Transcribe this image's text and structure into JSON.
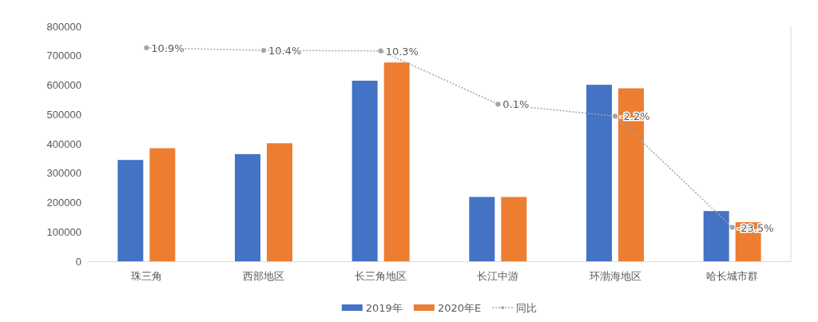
{
  "chart_data": {
    "type": "bar",
    "categories": [
      "珠三角",
      "西部地区",
      "长三角地区",
      "长江中游",
      "环渤海地区",
      "哈长城市群"
    ],
    "ylim": [
      0,
      800000
    ],
    "yticks": [
      0,
      100000,
      200000,
      300000,
      400000,
      500000,
      600000,
      700000,
      800000
    ],
    "y2lim": [
      -30,
      15
    ],
    "legend": "bottom",
    "grid": false,
    "series": [
      {
        "name": "2019年",
        "color": "#4472c4",
        "values": [
          345000,
          365000,
          615000,
          219000,
          601000,
          171000
        ]
      },
      {
        "name": "2020年E",
        "color": "#ed7d31",
        "values": [
          385000,
          402000,
          677000,
          219000,
          589000,
          133000
        ]
      },
      {
        "name": "同比",
        "type": "line",
        "axis": "y2",
        "color": "#a5a5a5",
        "line_style": "dotted",
        "marker": "circle",
        "data_labels": true,
        "value_labels": [
          "10.9%",
          "10.4%",
          "10.3%",
          "0.1%",
          "-2.2%",
          "-23.5%"
        ],
        "values": [
          10.9,
          10.4,
          10.3,
          0.1,
          -2.2,
          -23.5
        ]
      }
    ]
  }
}
